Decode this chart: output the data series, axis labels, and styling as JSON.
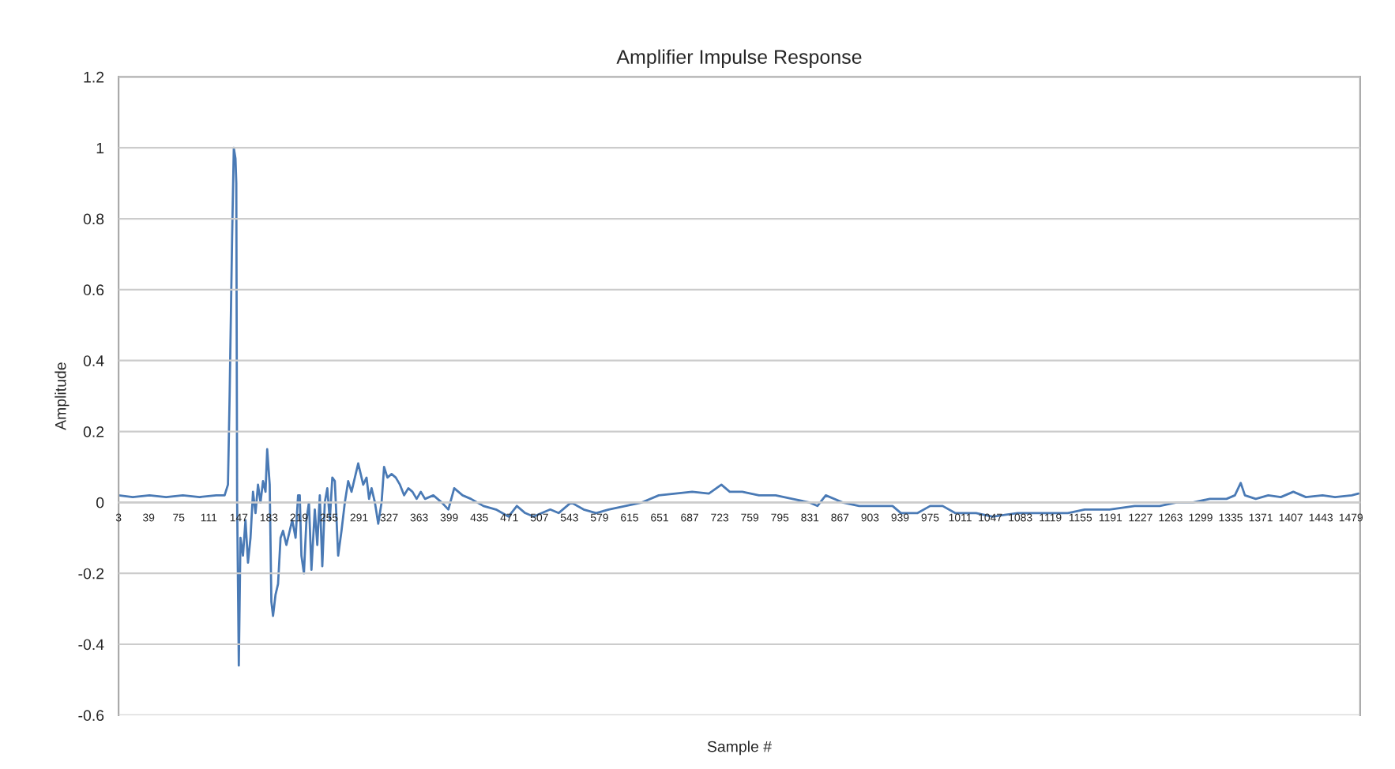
{
  "chart_data": {
    "type": "line",
    "title": "Amplifier Impulse Response",
    "xlabel": "Sample #",
    "ylabel": "Amplitude",
    "xlim": [
      3,
      1490
    ],
    "xticks": [
      3,
      39,
      75,
      111,
      147,
      183,
      219,
      255,
      291,
      327,
      363,
      399,
      435,
      471,
      507,
      543,
      579,
      615,
      651,
      687,
      723,
      759,
      795,
      831,
      867,
      903,
      939,
      975,
      1011,
      1047,
      1083,
      1119,
      1155,
      1191,
      1227,
      1263,
      1299,
      1335,
      1371,
      1407,
      1443,
      1479
    ],
    "ylim": [
      -0.6,
      1.2
    ],
    "yticks": [
      -0.6,
      -0.4,
      -0.2,
      0,
      0.2,
      0.4,
      0.6,
      0.8,
      1,
      1.2
    ],
    "grid": "y",
    "legend": false,
    "marker": "none",
    "line_style": "solid",
    "series": [
      {
        "color": "#4a7ab5",
        "x": [
          3,
          20,
          40,
          60,
          80,
          100,
          120,
          130,
          134,
          136,
          139,
          141,
          143,
          144,
          145,
          147,
          149,
          152,
          155,
          158,
          161,
          164,
          167,
          170,
          173,
          176,
          179,
          181,
          184,
          186,
          188,
          191,
          194,
          197,
          200,
          204,
          208,
          211,
          215,
          218,
          220,
          222,
          225,
          228,
          231,
          234,
          238,
          241,
          244,
          247,
          250,
          253,
          256,
          259,
          262,
          266,
          270,
          274,
          278,
          282,
          286,
          290,
          293,
          296,
          300,
          303,
          306,
          310,
          314,
          318,
          321,
          325,
          330,
          335,
          340,
          345,
          350,
          355,
          360,
          365,
          370,
          380,
          390,
          398,
          405,
          415,
          425,
          440,
          455,
          470,
          480,
          490,
          500,
          510,
          520,
          530,
          545,
          560,
          575,
          590,
          610,
          630,
          650,
          670,
          690,
          710,
          725,
          735,
          750,
          770,
          790,
          810,
          830,
          840,
          850,
          870,
          890,
          910,
          930,
          940,
          960,
          975,
          990,
          1005,
          1030,
          1050,
          1080,
          1110,
          1140,
          1160,
          1190,
          1220,
          1250,
          1270,
          1290,
          1310,
          1330,
          1340,
          1347,
          1352,
          1365,
          1380,
          1395,
          1410,
          1425,
          1445,
          1460,
          1480,
          1488
        ],
        "values": [
          0.02,
          0.015,
          0.02,
          0.015,
          0.02,
          0.015,
          0.02,
          0.02,
          0.05,
          0.3,
          0.75,
          1.0,
          0.97,
          0.9,
          0.0,
          -0.46,
          -0.1,
          -0.15,
          -0.05,
          -0.17,
          -0.1,
          0.03,
          -0.03,
          0.05,
          0.0,
          0.06,
          0.03,
          0.15,
          0.05,
          -0.28,
          -0.32,
          -0.26,
          -0.23,
          -0.1,
          -0.08,
          -0.12,
          -0.08,
          -0.05,
          -0.1,
          0.02,
          0.02,
          -0.15,
          -0.2,
          -0.05,
          0.0,
          -0.19,
          -0.02,
          -0.12,
          0.02,
          -0.18,
          0.0,
          0.04,
          -0.05,
          0.07,
          0.06,
          -0.15,
          -0.08,
          0.0,
          0.06,
          0.03,
          0.07,
          0.11,
          0.08,
          0.05,
          0.07,
          0.01,
          0.04,
          0.0,
          -0.06,
          0.0,
          0.1,
          0.07,
          0.08,
          0.07,
          0.05,
          0.02,
          0.04,
          0.03,
          0.01,
          0.03,
          0.01,
          0.02,
          0.0,
          -0.02,
          0.04,
          0.02,
          0.01,
          -0.01,
          -0.02,
          -0.04,
          -0.01,
          -0.03,
          -0.04,
          -0.03,
          -0.02,
          -0.03,
          0.0,
          -0.02,
          -0.03,
          -0.02,
          -0.01,
          0.0,
          0.02,
          0.025,
          0.03,
          0.025,
          0.05,
          0.03,
          0.03,
          0.02,
          0.02,
          0.01,
          0.0,
          -0.01,
          0.02,
          0.0,
          -0.01,
          -0.01,
          -0.01,
          -0.03,
          -0.03,
          -0.01,
          -0.01,
          -0.03,
          -0.03,
          -0.04,
          -0.03,
          -0.03,
          -0.03,
          -0.02,
          -0.02,
          -0.01,
          -0.01,
          0.0,
          0.0,
          0.01,
          0.01,
          0.02,
          0.055,
          0.02,
          0.01,
          0.02,
          0.015,
          0.03,
          0.015,
          0.02,
          0.015,
          0.02,
          0.025
        ]
      }
    ]
  }
}
